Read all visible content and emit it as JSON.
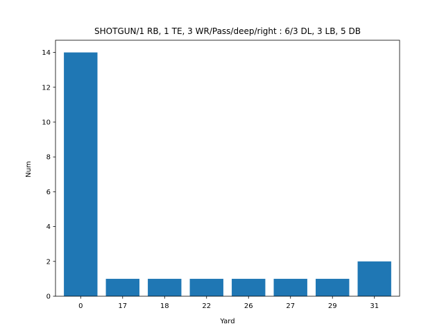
{
  "chart_data": {
    "type": "bar",
    "title": "SHOTGUN/1 RB, 1 TE, 3 WR/Pass/deep/right : 6/3 DL, 3 LB, 5 DB",
    "xlabel": "Yard",
    "ylabel": "Num",
    "categories": [
      "0",
      "17",
      "18",
      "22",
      "26",
      "27",
      "29",
      "31"
    ],
    "values": [
      14,
      1,
      1,
      1,
      1,
      1,
      1,
      2
    ],
    "ylim": [
      0,
      14.7
    ],
    "yticks": [
      0,
      2,
      4,
      6,
      8,
      10,
      12,
      14
    ],
    "grid": false,
    "legend": "none",
    "bar_color": "#1f77b4"
  }
}
